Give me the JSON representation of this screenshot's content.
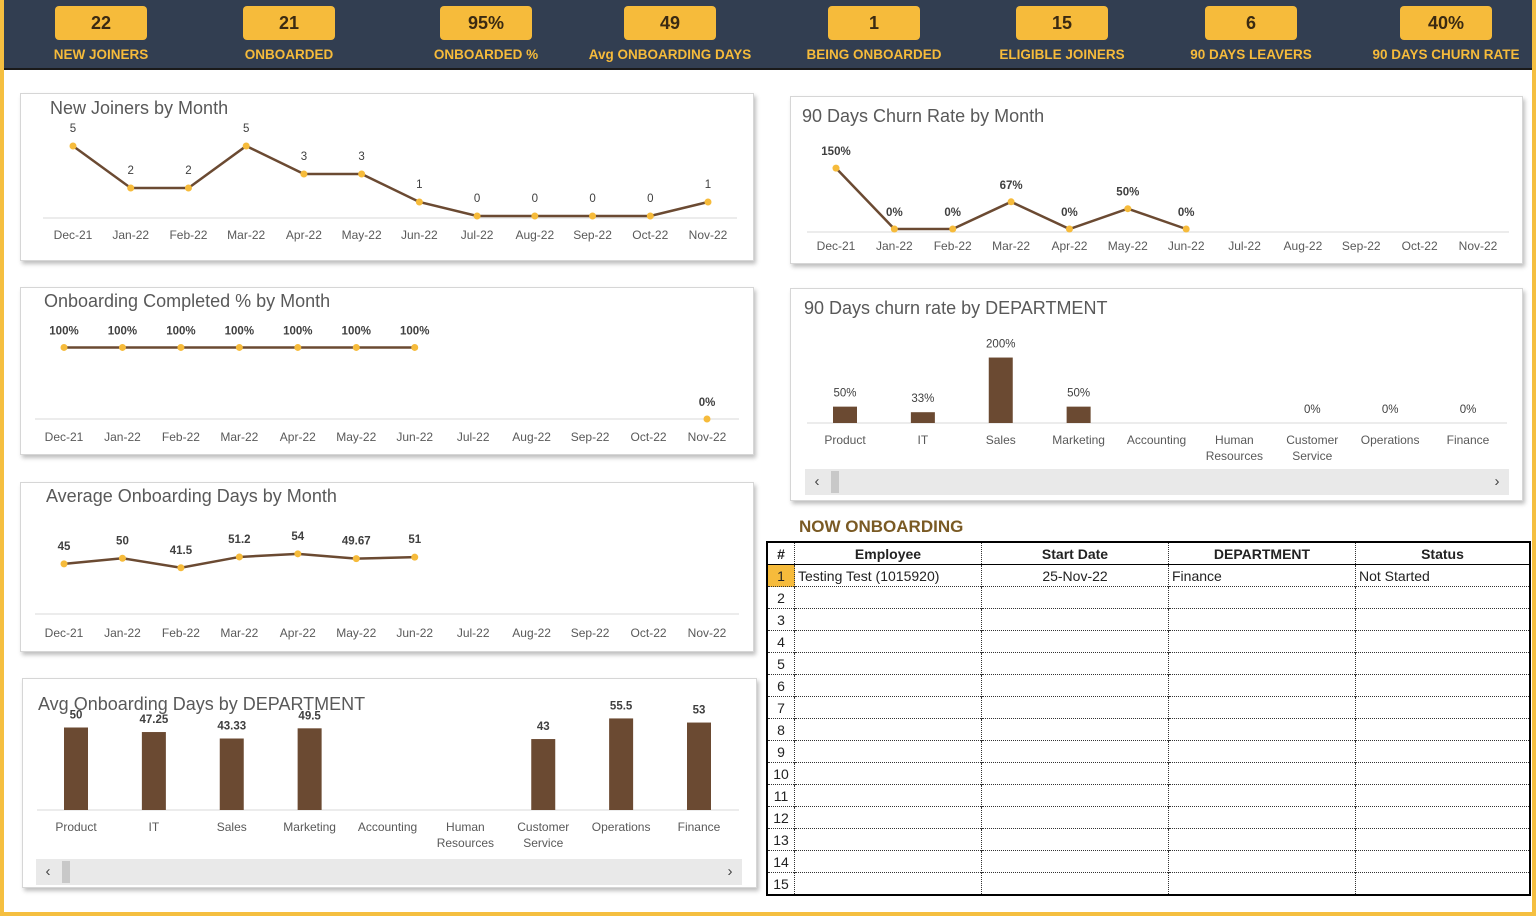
{
  "kpis": [
    {
      "value": "22",
      "label": "NEW JOINERS"
    },
    {
      "value": "21",
      "label": "ONBOARDED"
    },
    {
      "value": "95%",
      "label": "ONBOARDED %"
    },
    {
      "value": "49",
      "label": "Avg ONBOARDING DAYS"
    },
    {
      "value": "1",
      "label": "BEING ONBOARDED"
    },
    {
      "value": "15",
      "label": "ELIGIBLE JOINERS"
    },
    {
      "value": "6",
      "label": "90 DAYS LEAVERS"
    },
    {
      "value": "40%",
      "label": "90 DAYS CHURN RATE"
    }
  ],
  "colors": {
    "accent": "#f6bb3b",
    "header": "#323e51",
    "line": "#6b4a32",
    "bar": "#6b4a32",
    "point": "#f6bb3b",
    "frame": "#f5bf40"
  },
  "chart_data": [
    {
      "id": "new_joiners",
      "type": "line",
      "title": "New Joiners by Month",
      "categories": [
        "Dec-21",
        "Jan-22",
        "Feb-22",
        "Mar-22",
        "Apr-22",
        "May-22",
        "Jun-22",
        "Jul-22",
        "Aug-22",
        "Sep-22",
        "Oct-22",
        "Nov-22"
      ],
      "values": [
        5,
        2,
        2,
        5,
        3,
        3,
        1,
        0,
        0,
        0,
        0,
        1
      ],
      "labels": [
        "5",
        "2",
        "2",
        "5",
        "3",
        "3",
        "1",
        "0",
        "0",
        "0",
        "0",
        "1"
      ],
      "ylim": [
        0,
        5
      ]
    },
    {
      "id": "onboarding_pct",
      "type": "line",
      "title": "Onboarding Completed % by Month",
      "categories": [
        "Dec-21",
        "Jan-22",
        "Feb-22",
        "Mar-22",
        "Apr-22",
        "May-22",
        "Jun-22",
        "Jul-22",
        "Aug-22",
        "Sep-22",
        "Oct-22",
        "Nov-22"
      ],
      "values": [
        100,
        100,
        100,
        100,
        100,
        100,
        100,
        null,
        null,
        null,
        null,
        0
      ],
      "labels": [
        "100%",
        "100%",
        "100%",
        "100%",
        "100%",
        "100%",
        "100%",
        "",
        "",
        "",
        "",
        "0%"
      ],
      "ylim": [
        0,
        130
      ]
    },
    {
      "id": "avg_days_month",
      "type": "line",
      "title": "Average Onboarding Days by Month",
      "categories": [
        "Dec-21",
        "Jan-22",
        "Feb-22",
        "Mar-22",
        "Apr-22",
        "May-22",
        "Jun-22",
        "Jul-22",
        "Aug-22",
        "Sep-22",
        "Oct-22",
        "Nov-22"
      ],
      "values": [
        45,
        50,
        41.5,
        51.2,
        54,
        49.67,
        51,
        null,
        null,
        null,
        null,
        null
      ],
      "labels": [
        "45",
        "50",
        "41.5",
        "51.2",
        "54",
        "49.67",
        "51",
        "",
        "",
        "",
        "",
        ""
      ],
      "ylim": [
        0,
        70
      ]
    },
    {
      "id": "avg_days_dept",
      "type": "bar",
      "title": "Avg Onboarding Days by DEPARTMENT",
      "categories": [
        "Product",
        "IT",
        "Sales",
        "Marketing",
        "Accounting",
        "Human|Resources",
        "Customer|Service",
        "Operations",
        "Finance"
      ],
      "values": [
        50,
        47.25,
        43.33,
        49.5,
        null,
        null,
        43,
        55.5,
        53
      ],
      "labels": [
        "50",
        "47.25",
        "43.33",
        "49.5",
        "",
        "",
        "43",
        "55.5",
        "53"
      ],
      "ylim": [
        0,
        60
      ]
    },
    {
      "id": "churn_month",
      "type": "line",
      "title": "90 Days Churn Rate by Month",
      "categories": [
        "Dec-21",
        "Jan-22",
        "Feb-22",
        "Mar-22",
        "Apr-22",
        "May-22",
        "Jun-22",
        "Jul-22",
        "Aug-22",
        "Sep-22",
        "Oct-22",
        "Nov-22"
      ],
      "values": [
        150,
        0,
        0,
        67,
        0,
        50,
        0,
        null,
        null,
        null,
        null,
        null
      ],
      "labels": [
        "150%",
        "0%",
        "0%",
        "67%",
        "0%",
        "50%",
        "0%",
        "",
        "",
        "",
        "",
        ""
      ],
      "ylim": [
        0,
        170
      ]
    },
    {
      "id": "churn_dept",
      "type": "bar",
      "title": "90 Days churn rate by DEPARTMENT",
      "categories": [
        "Product",
        "IT",
        "Sales",
        "Marketing",
        "Accounting",
        "Human|Resources",
        "Customer|Service",
        "Operations",
        "Finance"
      ],
      "values": [
        50,
        33,
        200,
        50,
        null,
        null,
        0,
        0,
        0
      ],
      "labels": [
        "50%",
        "33%",
        "200%",
        "50%",
        "",
        "",
        "0%",
        "0%",
        "0%"
      ],
      "ylim": [
        0,
        220
      ]
    }
  ],
  "now_onboarding": {
    "title": "NOW ONBOARDING",
    "headers": [
      "#",
      "Employee",
      "Start Date",
      "DEPARTMENT",
      "Status"
    ],
    "rows": [
      [
        "1",
        "Testing Test (1015920)",
        "25-Nov-22",
        "Finance",
        "Not Started"
      ],
      [
        "2",
        "",
        "",
        "",
        ""
      ],
      [
        "3",
        "",
        "",
        "",
        ""
      ],
      [
        "4",
        "",
        "",
        "",
        ""
      ],
      [
        "5",
        "",
        "",
        "",
        ""
      ],
      [
        "6",
        "",
        "",
        "",
        ""
      ],
      [
        "7",
        "",
        "",
        "",
        ""
      ],
      [
        "8",
        "",
        "",
        "",
        ""
      ],
      [
        "9",
        "",
        "",
        "",
        ""
      ],
      [
        "10",
        "",
        "",
        "",
        ""
      ],
      [
        "11",
        "",
        "",
        "",
        ""
      ],
      [
        "12",
        "",
        "",
        "",
        ""
      ],
      [
        "13",
        "",
        "",
        "",
        ""
      ],
      [
        "14",
        "",
        "",
        "",
        ""
      ],
      [
        "15",
        "",
        "",
        "",
        ""
      ]
    ]
  },
  "scrollbar": {
    "left_arrow": "‹",
    "right_arrow": "›"
  }
}
